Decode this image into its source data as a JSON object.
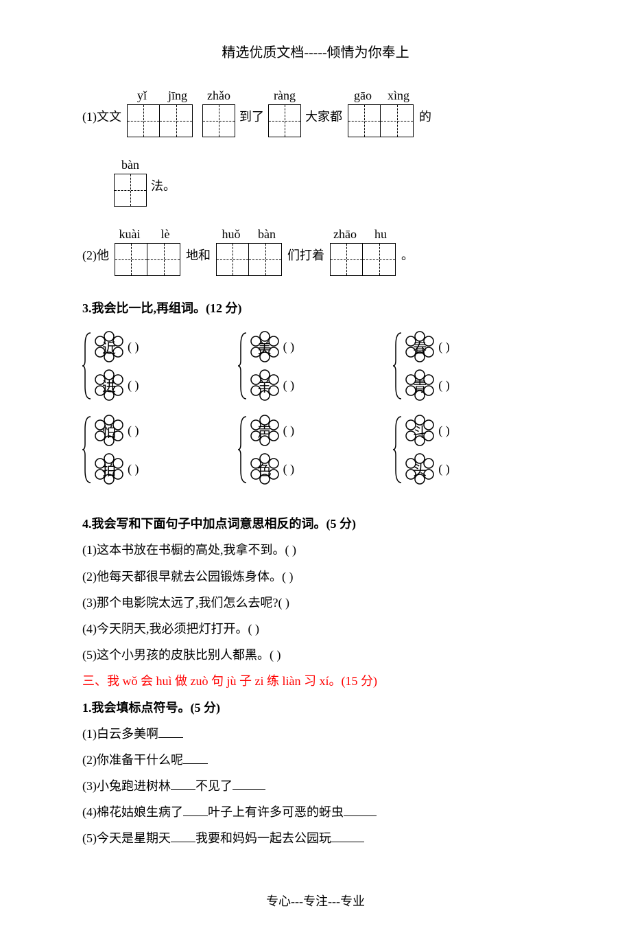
{
  "header": "精选优质文档-----倾情为你奉上",
  "footer": "专心---专注---专业",
  "q2": {
    "line1": {
      "pre": "(1)文文",
      "box1_pinyin": [
        "yǐ",
        "jīng"
      ],
      "box2_pinyin": [
        "zhǎo"
      ],
      "mid1": "到了",
      "box3_pinyin": [
        "ràng"
      ],
      "mid2": "大家都",
      "box4_pinyin": [
        "gāo",
        "xìng"
      ],
      "post": "的"
    },
    "line1b": {
      "box_pinyin": [
        "bàn"
      ],
      "post": "法。"
    },
    "line2": {
      "pre": "(2)他",
      "box1_pinyin": [
        "kuài",
        "lè"
      ],
      "mid1": "地和",
      "box2_pinyin": [
        "huǒ",
        "bàn"
      ],
      "mid2": "们打着",
      "box3_pinyin": [
        "zhāo",
        "hu"
      ],
      "post": "。"
    }
  },
  "q3": {
    "title": "3.我会比一比,再组词。(12 分)",
    "pairs": [
      [
        "近",
        "进"
      ],
      [
        "美",
        "羊"
      ],
      [
        "春",
        "青"
      ],
      [
        "怕",
        "拍"
      ],
      [
        "声",
        "色"
      ],
      [
        "斗",
        "头"
      ]
    ],
    "paren_blank": "(                )"
  },
  "q4": {
    "title": "4.我会写和下面句子中加点词意思相反的词。(5 分)",
    "items": [
      "(1)这本书放在书橱的高处,我拿不到。(         )",
      "(2)他每天都很早就去公园锻炼身体。(        )",
      "(3)那个电影院太远了,我们怎么去呢?(         )",
      "(4)今天阴天,我必须把灯打开。(         )",
      "(5)这个小男孩的皮肤比别人都黑。(        )"
    ]
  },
  "q5": {
    "title": "三、我 wǒ 会 huì 做 zuò 句 jù 子 zi 练 liàn 习 xí。(15 分)",
    "sub1_title": "1.我会填标点符号。(5 分)",
    "items": [
      {
        "pre": "(1)白云多美啊",
        "blanks": 1
      },
      {
        "pre": "(2)你准备干什么呢",
        "blanks": 1
      },
      {
        "pre": "(3)小兔跑进树林",
        "mid": "不见了",
        "blanks": 2
      },
      {
        "pre": "(4)棉花姑娘生病了",
        "mid": "叶子上有许多可恶的蚜虫",
        "blanks": 2
      },
      {
        "pre": "(5)今天是星期天",
        "mid": "我要和妈妈一起去公园玩",
        "blanks": 2
      }
    ]
  }
}
